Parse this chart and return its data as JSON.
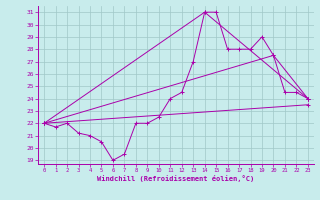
{
  "xlabel": "Windchill (Refroidissement éolien,°C)",
  "xlim": [
    -0.5,
    23.5
  ],
  "ylim": [
    18.7,
    31.5
  ],
  "yticks": [
    19,
    20,
    21,
    22,
    23,
    24,
    25,
    26,
    27,
    28,
    29,
    30,
    31
  ],
  "xticks": [
    0,
    1,
    2,
    3,
    4,
    5,
    6,
    7,
    8,
    9,
    10,
    11,
    12,
    13,
    14,
    15,
    16,
    17,
    18,
    19,
    20,
    21,
    22,
    23
  ],
  "background_color": "#c8ecec",
  "grid_color": "#a0c8c8",
  "line_color": "#aa00aa",
  "series": [
    {
      "x": [
        0,
        1,
        2,
        3,
        4,
        5,
        6,
        7,
        8,
        9,
        10,
        11,
        12,
        13,
        14,
        15,
        16,
        17,
        18,
        19,
        20,
        21,
        22,
        23
      ],
      "y": [
        22,
        21.7,
        22,
        21.2,
        21.0,
        20.5,
        19.0,
        19.5,
        22.0,
        22.0,
        22.5,
        24.0,
        24.5,
        27.0,
        31.0,
        31.0,
        28.0,
        28.0,
        28.0,
        29.0,
        27.5,
        24.5,
        24.5,
        24.0
      ]
    },
    {
      "x": [
        0,
        14,
        23
      ],
      "y": [
        22,
        31.0,
        24.0
      ]
    },
    {
      "x": [
        0,
        20,
        23
      ],
      "y": [
        22,
        27.5,
        24.0
      ]
    },
    {
      "x": [
        0,
        23
      ],
      "y": [
        22,
        23.5
      ]
    }
  ]
}
